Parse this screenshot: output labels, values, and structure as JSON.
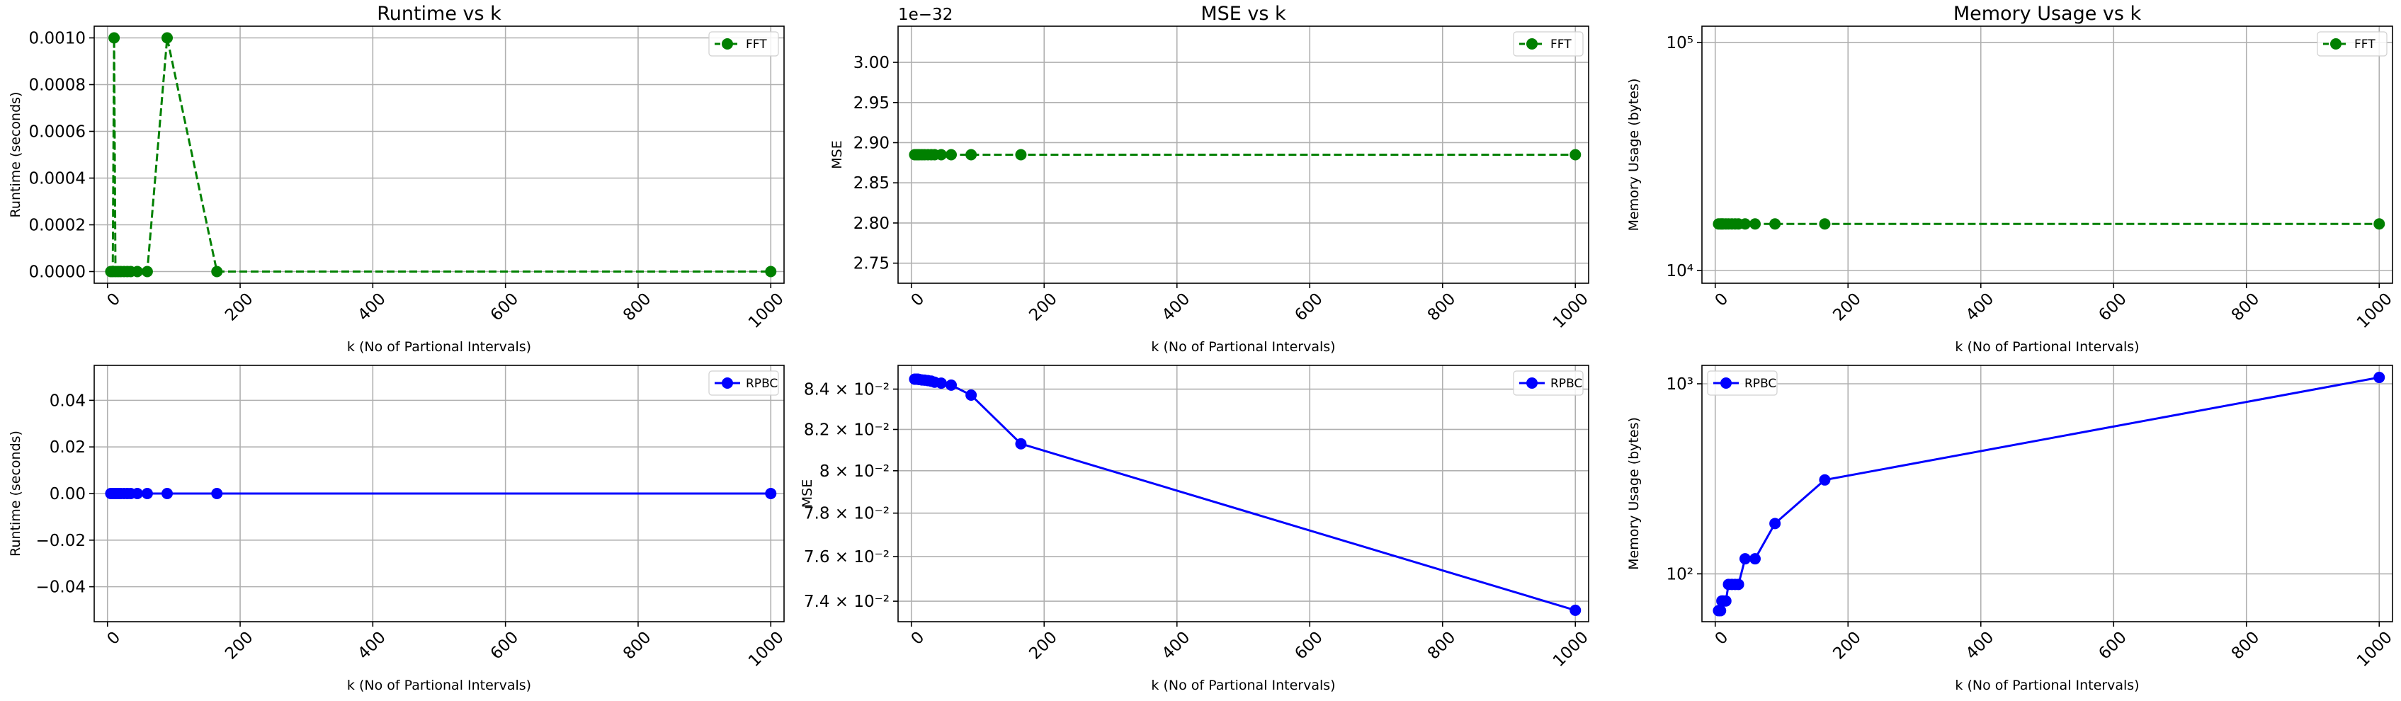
{
  "chart_data": [
    {
      "id": "runtime-fft",
      "type": "line",
      "title": "Runtime vs k",
      "xlabel": "k (No of Partional Intervals)",
      "ylabel": "Runtime (seconds)",
      "xlim": [
        -20,
        1020
      ],
      "ylim": [
        -5e-05,
        0.00105
      ],
      "yscale": "linear",
      "xticks": [
        0,
        200,
        400,
        600,
        800,
        1000
      ],
      "xtick_labels": [
        "0",
        "200",
        "400",
        "600",
        "800",
        "1000"
      ],
      "yticks": [
        0,
        0.0002,
        0.0004,
        0.0006,
        0.0008,
        0.001
      ],
      "ytick_labels": [
        "0.0000",
        "0.0002",
        "0.0004",
        "0.0006",
        "0.0008",
        "0.0010"
      ],
      "legend_loc": "top-right",
      "grid": true,
      "series": [
        {
          "name": "FFT",
          "color": "#008000",
          "linestyle": "dashed",
          "marker": "circle",
          "x": [
            5,
            8,
            10,
            12,
            16,
            20,
            25,
            30,
            35,
            45,
            60,
            90,
            165,
            1000
          ],
          "y": [
            0,
            0,
            0.001,
            0,
            0,
            0,
            0,
            0,
            0,
            0,
            0,
            0.001,
            0,
            0
          ]
        }
      ]
    },
    {
      "id": "mse-fft",
      "type": "line",
      "title": "MSE vs k",
      "xlabel": "k (No of Partional Intervals)",
      "ylabel": "MSE",
      "offset_text": "1e−32",
      "xlim": [
        -20,
        1020
      ],
      "ylim": [
        2.725,
        3.045
      ],
      "yscale": "linear",
      "xticks": [
        0,
        200,
        400,
        600,
        800,
        1000
      ],
      "xtick_labels": [
        "0",
        "200",
        "400",
        "600",
        "800",
        "1000"
      ],
      "yticks": [
        2.75,
        2.8,
        2.85,
        2.9,
        2.95,
        3.0
      ],
      "ytick_labels": [
        "2.75",
        "2.80",
        "2.85",
        "2.90",
        "2.95",
        "3.00"
      ],
      "legend_loc": "top-right",
      "grid": true,
      "series": [
        {
          "name": "FFT",
          "color": "#008000",
          "linestyle": "dashed",
          "marker": "circle",
          "x": [
            5,
            8,
            10,
            12,
            16,
            20,
            25,
            30,
            35,
            45,
            60,
            90,
            165,
            1000
          ],
          "y": [
            2.885,
            2.885,
            2.885,
            2.885,
            2.885,
            2.885,
            2.885,
            2.885,
            2.885,
            2.885,
            2.885,
            2.885,
            2.885,
            2.885
          ]
        }
      ]
    },
    {
      "id": "memory-fft",
      "type": "line",
      "title": "Memory Usage vs k",
      "xlabel": "k (No of Partional Intervals)",
      "ylabel": "Memory Usage (bytes)",
      "xlim": [
        -20,
        1020
      ],
      "ylim": [
        8800,
        118000
      ],
      "yscale": "log",
      "xticks": [
        0,
        200,
        400,
        600,
        800,
        1000
      ],
      "xtick_labels": [
        "0",
        "200",
        "400",
        "600",
        "800",
        "1000"
      ],
      "yticks": [
        10000,
        100000
      ],
      "ytick_labels": [
        "10⁴",
        "10⁵"
      ],
      "legend_loc": "top-right",
      "grid": true,
      "series": [
        {
          "name": "FFT",
          "color": "#008000",
          "linestyle": "dashed",
          "marker": "circle",
          "x": [
            5,
            8,
            10,
            12,
            16,
            20,
            25,
            30,
            35,
            45,
            60,
            90,
            165,
            1000
          ],
          "y": [
            16016,
            16016,
            16016,
            16016,
            16016,
            16016,
            16016,
            16016,
            16016,
            16016,
            16016,
            16016,
            16016,
            16016
          ]
        }
      ]
    },
    {
      "id": "runtime-rpbc",
      "type": "line",
      "title": "",
      "xlabel": "k (No of Partional Intervals)",
      "ylabel": "Runtime (seconds)",
      "xlim": [
        -20,
        1020
      ],
      "ylim": [
        -0.055,
        0.055
      ],
      "yscale": "linear",
      "xticks": [
        0,
        200,
        400,
        600,
        800,
        1000
      ],
      "xtick_labels": [
        "0",
        "200",
        "400",
        "600",
        "800",
        "1000"
      ],
      "yticks": [
        -0.04,
        -0.02,
        0,
        0.02,
        0.04
      ],
      "ytick_labels": [
        "−0.04",
        "−0.02",
        "0.00",
        "0.02",
        "0.04"
      ],
      "legend_loc": "top-right",
      "grid": true,
      "series": [
        {
          "name": "RPBC",
          "color": "#0000ff",
          "linestyle": "solid",
          "marker": "circle",
          "x": [
            5,
            8,
            10,
            12,
            16,
            20,
            25,
            30,
            35,
            45,
            60,
            90,
            165,
            1000
          ],
          "y": [
            0,
            0,
            0,
            0,
            0,
            0,
            0,
            0,
            0,
            0,
            0,
            0,
            0,
            0
          ]
        }
      ]
    },
    {
      "id": "mse-rpbc",
      "type": "line",
      "title": "",
      "xlabel": "k (No of Partional Intervals)",
      "ylabel": "MSE",
      "xlim": [
        -20,
        1020
      ],
      "ylim": [
        0.0731,
        0.0852
      ],
      "yscale": "log",
      "xticks": [
        0,
        200,
        400,
        600,
        800,
        1000
      ],
      "xtick_labels": [
        "0",
        "200",
        "400",
        "600",
        "800",
        "1000"
      ],
      "yticks": [
        0.074,
        0.076,
        0.078,
        0.08,
        0.082,
        0.084
      ],
      "ytick_labels": [
        "7.4 × 10⁻²",
        "7.6 × 10⁻²",
        "7.8 × 10⁻²",
        "8 × 10⁻²",
        "8.2 × 10⁻²",
        "8.4 × 10⁻²"
      ],
      "legend_loc": "top-right",
      "grid": true,
      "series": [
        {
          "name": "RPBC",
          "color": "#0000ff",
          "linestyle": "solid",
          "marker": "circle",
          "x": [
            5,
            8,
            10,
            12,
            16,
            20,
            25,
            30,
            35,
            45,
            60,
            90,
            165,
            1000
          ],
          "y": [
            0.0845,
            0.0845,
            0.0845,
            0.08448,
            0.08446,
            0.08445,
            0.08443,
            0.0844,
            0.08435,
            0.0843,
            0.0842,
            0.0837,
            0.0813,
            0.0736
          ]
        }
      ]
    },
    {
      "id": "memory-rpbc",
      "type": "line",
      "title": "",
      "xlabel": "k (No of Partional Intervals)",
      "ylabel": "Memory Usage (bytes)",
      "xlim": [
        -20,
        1020
      ],
      "ylim": [
        56,
        1250
      ],
      "yscale": "log",
      "xticks": [
        0,
        200,
        400,
        600,
        800,
        1000
      ],
      "xtick_labels": [
        "0",
        "200",
        "400",
        "600",
        "800",
        "1000"
      ],
      "yticks": [
        100,
        1000
      ],
      "ytick_labels": [
        "10²",
        "10³"
      ],
      "legend_loc": "top-left",
      "grid": true,
      "series": [
        {
          "name": "RPBC",
          "color": "#0000ff",
          "linestyle": "solid",
          "marker": "circle",
          "x": [
            5,
            8,
            10,
            12,
            16,
            20,
            25,
            30,
            35,
            45,
            60,
            90,
            165,
            1000
          ],
          "y": [
            64,
            64,
            72,
            72,
            72,
            88,
            88,
            88,
            88,
            120,
            120,
            184,
            312,
            1080
          ]
        }
      ]
    }
  ]
}
